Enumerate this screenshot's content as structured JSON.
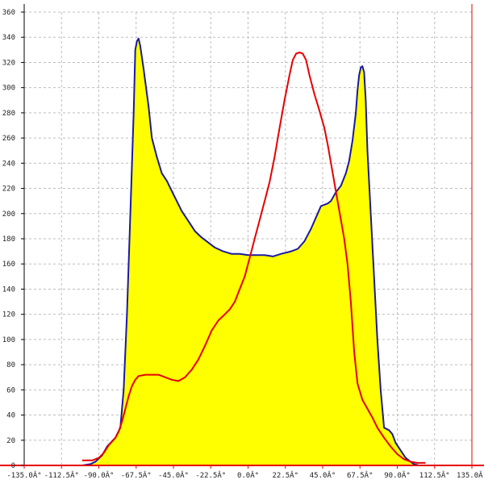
{
  "chart_data": {
    "type": "area",
    "title": "",
    "xlabel": "",
    "ylabel": "",
    "xlim": [
      -135,
      135
    ],
    "ylim": [
      0,
      360
    ],
    "grid": true,
    "x_ticks": [
      -135,
      -112.5,
      -90,
      -67.5,
      -45,
      -22.5,
      0,
      22.5,
      45,
      67.5,
      90,
      112.5,
      135
    ],
    "x_tick_labels": [
      "-135.0Â°",
      "-112.5Â°",
      "-90.0Â°",
      "-67.5Â°",
      "-45.0Â°",
      "-22.5Â°",
      "0.0Â°",
      "22.5Â°",
      "45.0Â°",
      "67.5Â°",
      "90.0Â°",
      "112.5Â°",
      "135.0Â°"
    ],
    "y_ticks": [
      0,
      20,
      40,
      60,
      80,
      100,
      120,
      140,
      160,
      180,
      200,
      220,
      240,
      260,
      280,
      300,
      320,
      340,
      360
    ],
    "y_tick_labels": [
      "0",
      "20",
      "40",
      "60",
      "80",
      "100",
      "120",
      "140",
      "160",
      "180",
      "200",
      "220",
      "240",
      "260",
      "280",
      "300",
      "320",
      "340",
      "360"
    ],
    "series": [
      {
        "color": "#1a1aa0",
        "fill": "#ffff00",
        "points": [
          [
            -100,
            0
          ],
          [
            -95,
            1
          ],
          [
            -92,
            3
          ],
          [
            -88,
            8
          ],
          [
            -85,
            15
          ],
          [
            -80,
            22
          ],
          [
            -77,
            30
          ],
          [
            -75,
            60
          ],
          [
            -73,
            120
          ],
          [
            -71,
            200
          ],
          [
            -69,
            280
          ],
          [
            -68,
            330
          ],
          [
            -67,
            337
          ],
          [
            -66,
            339
          ],
          [
            -65,
            333
          ],
          [
            -63,
            315
          ],
          [
            -60,
            285
          ],
          [
            -58,
            260
          ],
          [
            -55,
            245
          ],
          [
            -52,
            232
          ],
          [
            -49,
            226
          ],
          [
            -46,
            218
          ],
          [
            -43,
            210
          ],
          [
            -40,
            202
          ],
          [
            -36,
            194
          ],
          [
            -32,
            186
          ],
          [
            -28,
            181
          ],
          [
            -24,
            177
          ],
          [
            -20,
            173
          ],
          [
            -15,
            170
          ],
          [
            -10,
            168
          ],
          [
            -5,
            168
          ],
          [
            0,
            167
          ],
          [
            10,
            167
          ],
          [
            15,
            166
          ],
          [
            20,
            168
          ],
          [
            26,
            170
          ],
          [
            30,
            172
          ],
          [
            34,
            178
          ],
          [
            38,
            188
          ],
          [
            42,
            200
          ],
          [
            44,
            206
          ],
          [
            48,
            208
          ],
          [
            50,
            210
          ],
          [
            53,
            217
          ],
          [
            56,
            222
          ],
          [
            59,
            232
          ],
          [
            61,
            242
          ],
          [
            63,
            258
          ],
          [
            65,
            280
          ],
          [
            66,
            298
          ],
          [
            67,
            310
          ],
          [
            68,
            316
          ],
          [
            69,
            317
          ],
          [
            70,
            312
          ],
          [
            71,
            290
          ],
          [
            72,
            250
          ],
          [
            74,
            200
          ],
          [
            76,
            150
          ],
          [
            78,
            100
          ],
          [
            80,
            60
          ],
          [
            82,
            30
          ],
          [
            85,
            28
          ],
          [
            87,
            25
          ],
          [
            89,
            18
          ],
          [
            92,
            12
          ],
          [
            95,
            6
          ],
          [
            98,
            3
          ],
          [
            100,
            1
          ],
          [
            103,
            0
          ],
          [
            107,
            0
          ]
        ]
      },
      {
        "color": "#e60000",
        "points": [
          [
            -100,
            4
          ],
          [
            -94,
            4
          ],
          [
            -90,
            6
          ],
          [
            -87,
            10
          ],
          [
            -84,
            16
          ],
          [
            -80,
            22
          ],
          [
            -78,
            27
          ],
          [
            -76,
            35
          ],
          [
            -74,
            45
          ],
          [
            -72,
            55
          ],
          [
            -70,
            63
          ],
          [
            -68,
            68
          ],
          [
            -66,
            71
          ],
          [
            -62,
            72
          ],
          [
            -58,
            72
          ],
          [
            -54,
            72
          ],
          [
            -50,
            70
          ],
          [
            -46,
            68
          ],
          [
            -42,
            67
          ],
          [
            -38,
            70
          ],
          [
            -34,
            76
          ],
          [
            -30,
            84
          ],
          [
            -26,
            95
          ],
          [
            -22,
            107
          ],
          [
            -18,
            115
          ],
          [
            -14,
            120
          ],
          [
            -11,
            124
          ],
          [
            -8,
            130
          ],
          [
            -5,
            140
          ],
          [
            -2,
            150
          ],
          [
            1,
            165
          ],
          [
            4,
            180
          ],
          [
            7,
            195
          ],
          [
            10,
            210
          ],
          [
            13,
            225
          ],
          [
            16,
            245
          ],
          [
            19,
            268
          ],
          [
            22,
            290
          ],
          [
            25,
            310
          ],
          [
            27,
            322
          ],
          [
            29,
            327
          ],
          [
            31,
            328
          ],
          [
            33,
            327
          ],
          [
            35,
            322
          ],
          [
            37,
            310
          ],
          [
            40,
            295
          ],
          [
            43,
            282
          ],
          [
            46,
            268
          ],
          [
            48,
            255
          ],
          [
            50,
            240
          ],
          [
            52,
            225
          ],
          [
            54,
            210
          ],
          [
            56,
            195
          ],
          [
            58,
            180
          ],
          [
            60,
            160
          ],
          [
            62,
            130
          ],
          [
            63,
            110
          ],
          [
            64,
            90
          ],
          [
            66,
            65
          ],
          [
            69,
            52
          ],
          [
            72,
            45
          ],
          [
            75,
            38
          ],
          [
            78,
            30
          ],
          [
            82,
            22
          ],
          [
            86,
            15
          ],
          [
            90,
            9
          ],
          [
            94,
            5
          ],
          [
            98,
            3
          ],
          [
            102,
            2
          ],
          [
            107,
            2
          ]
        ]
      }
    ]
  }
}
